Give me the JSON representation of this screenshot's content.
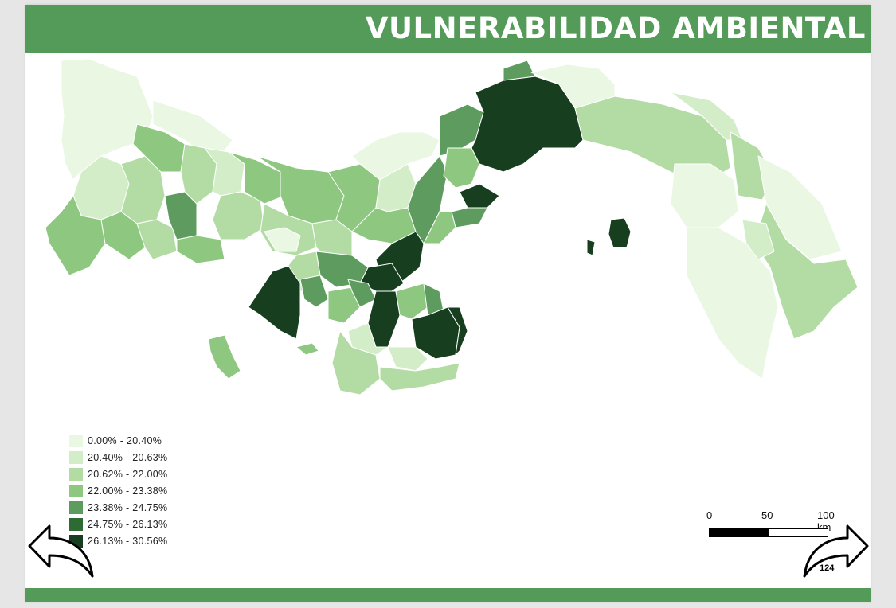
{
  "header": {
    "title": "VULNERABILIDAD AMBIENTAL"
  },
  "legend": {
    "items": [
      {
        "label": "0.00% - 20.40%",
        "color": "#eaf7e3"
      },
      {
        "label": "20.40% - 20.63%",
        "color": "#d3edc8"
      },
      {
        "label": "20.62% - 22.00%",
        "color": "#b3dca4"
      },
      {
        "label": "22.00% - 23.38%",
        "color": "#8dc780"
      },
      {
        "label": "23.38% - 24.75%",
        "color": "#5d9c5e"
      },
      {
        "label": "24.75% - 26.13%",
        "color": "#2e6a33"
      },
      {
        "label": "26.13% - 30.56%",
        "color": "#173f1f"
      }
    ]
  },
  "scale_bar": {
    "labels": [
      "0",
      "50",
      "100 km"
    ]
  },
  "navigation": {
    "back_icon": "left-arrow-icon",
    "forward_icon": "right-arrow-icon",
    "page_number": "124"
  },
  "colors": {
    "header": "#549a59",
    "footer": "#549a59"
  }
}
